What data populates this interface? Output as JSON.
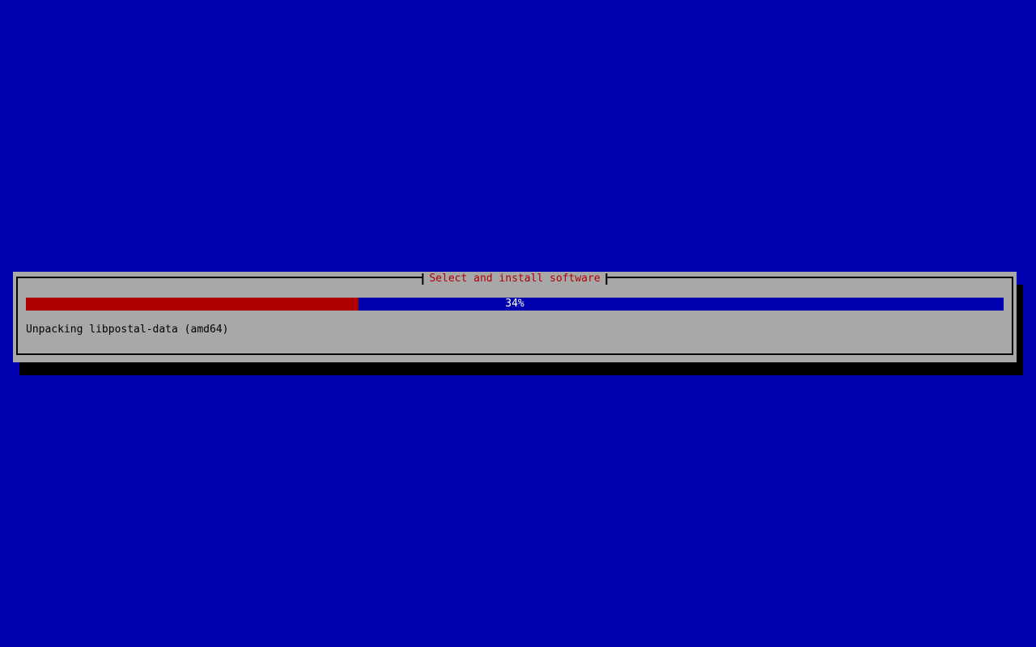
{
  "window": {
    "title": "Select and install software"
  },
  "progress": {
    "percent": 34,
    "label": "34%"
  },
  "status": {
    "text": "Unpacking libpostal-data (amd64)"
  },
  "colors": {
    "screen_background": "#0000b0",
    "dialog_background": "#a8a8a8",
    "border": "#000000",
    "shadow": "#000000",
    "title_text": "#b00000",
    "progress_fill": "#b00000",
    "progress_track": "#0000b0",
    "progress_label_text": "#ffffff",
    "status_text": "#000000"
  }
}
